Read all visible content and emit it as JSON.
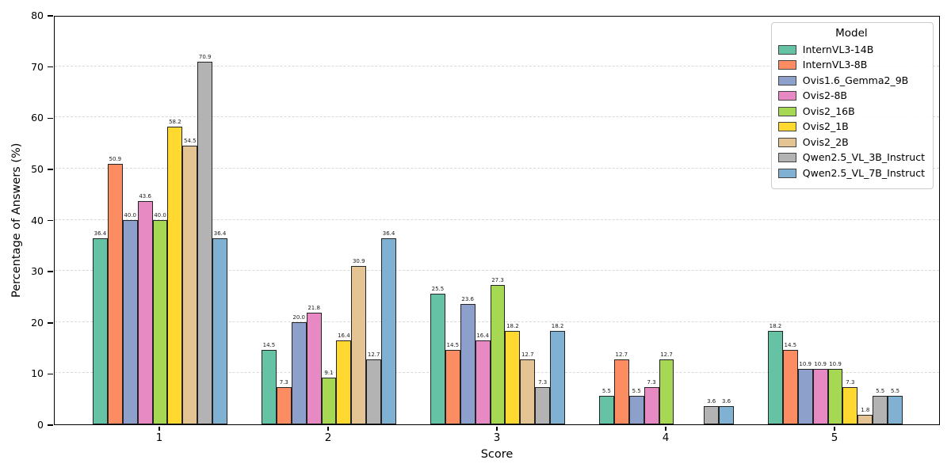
{
  "chart_data": {
    "type": "bar",
    "title": "",
    "xlabel": "Score",
    "ylabel": "Percentage of Answers (%)",
    "legend_title": "Model",
    "legend_position": "upper right",
    "grid": "dashed horizontal",
    "ylim": [
      0,
      80
    ],
    "yticks": [
      0,
      10,
      20,
      30,
      40,
      50,
      60,
      70,
      80
    ],
    "categories": [
      "1",
      "2",
      "3",
      "4",
      "5"
    ],
    "bar_label_format": "one_decimal",
    "series": [
      {
        "name": "InternVL3-14B",
        "color": "#66c2a5",
        "values": [
          36.4,
          14.5,
          25.5,
          5.5,
          18.2
        ]
      },
      {
        "name": "InternVL3-8B",
        "color": "#fc8d62",
        "values": [
          50.9,
          7.3,
          14.5,
          12.7,
          14.5
        ]
      },
      {
        "name": "Ovis1.6_Gemma2_9B",
        "color": "#8da0cb",
        "values": [
          40.0,
          20.0,
          23.6,
          5.5,
          10.9
        ]
      },
      {
        "name": "Ovis2-8B",
        "color": "#e78ac3",
        "values": [
          43.6,
          21.8,
          16.4,
          7.3,
          10.9
        ]
      },
      {
        "name": "Ovis2_16B",
        "color": "#a6d854",
        "values": [
          40.0,
          9.1,
          27.3,
          12.7,
          10.9
        ]
      },
      {
        "name": "Ovis2_1B",
        "color": "#ffd92f",
        "values": [
          58.2,
          16.4,
          18.2,
          null,
          7.3
        ]
      },
      {
        "name": "Ovis2_2B",
        "color": "#e5c494",
        "values": [
          54.5,
          30.9,
          12.7,
          null,
          1.8
        ]
      },
      {
        "name": "Qwen2.5_VL_3B_Instruct",
        "color": "#b3b3b3",
        "values": [
          70.9,
          12.7,
          7.3,
          3.6,
          5.5
        ]
      },
      {
        "name": "Qwen2.5_VL_7B_Instruct",
        "color": "#80b1d3",
        "values": [
          36.4,
          36.4,
          18.2,
          3.6,
          5.5
        ]
      }
    ]
  }
}
